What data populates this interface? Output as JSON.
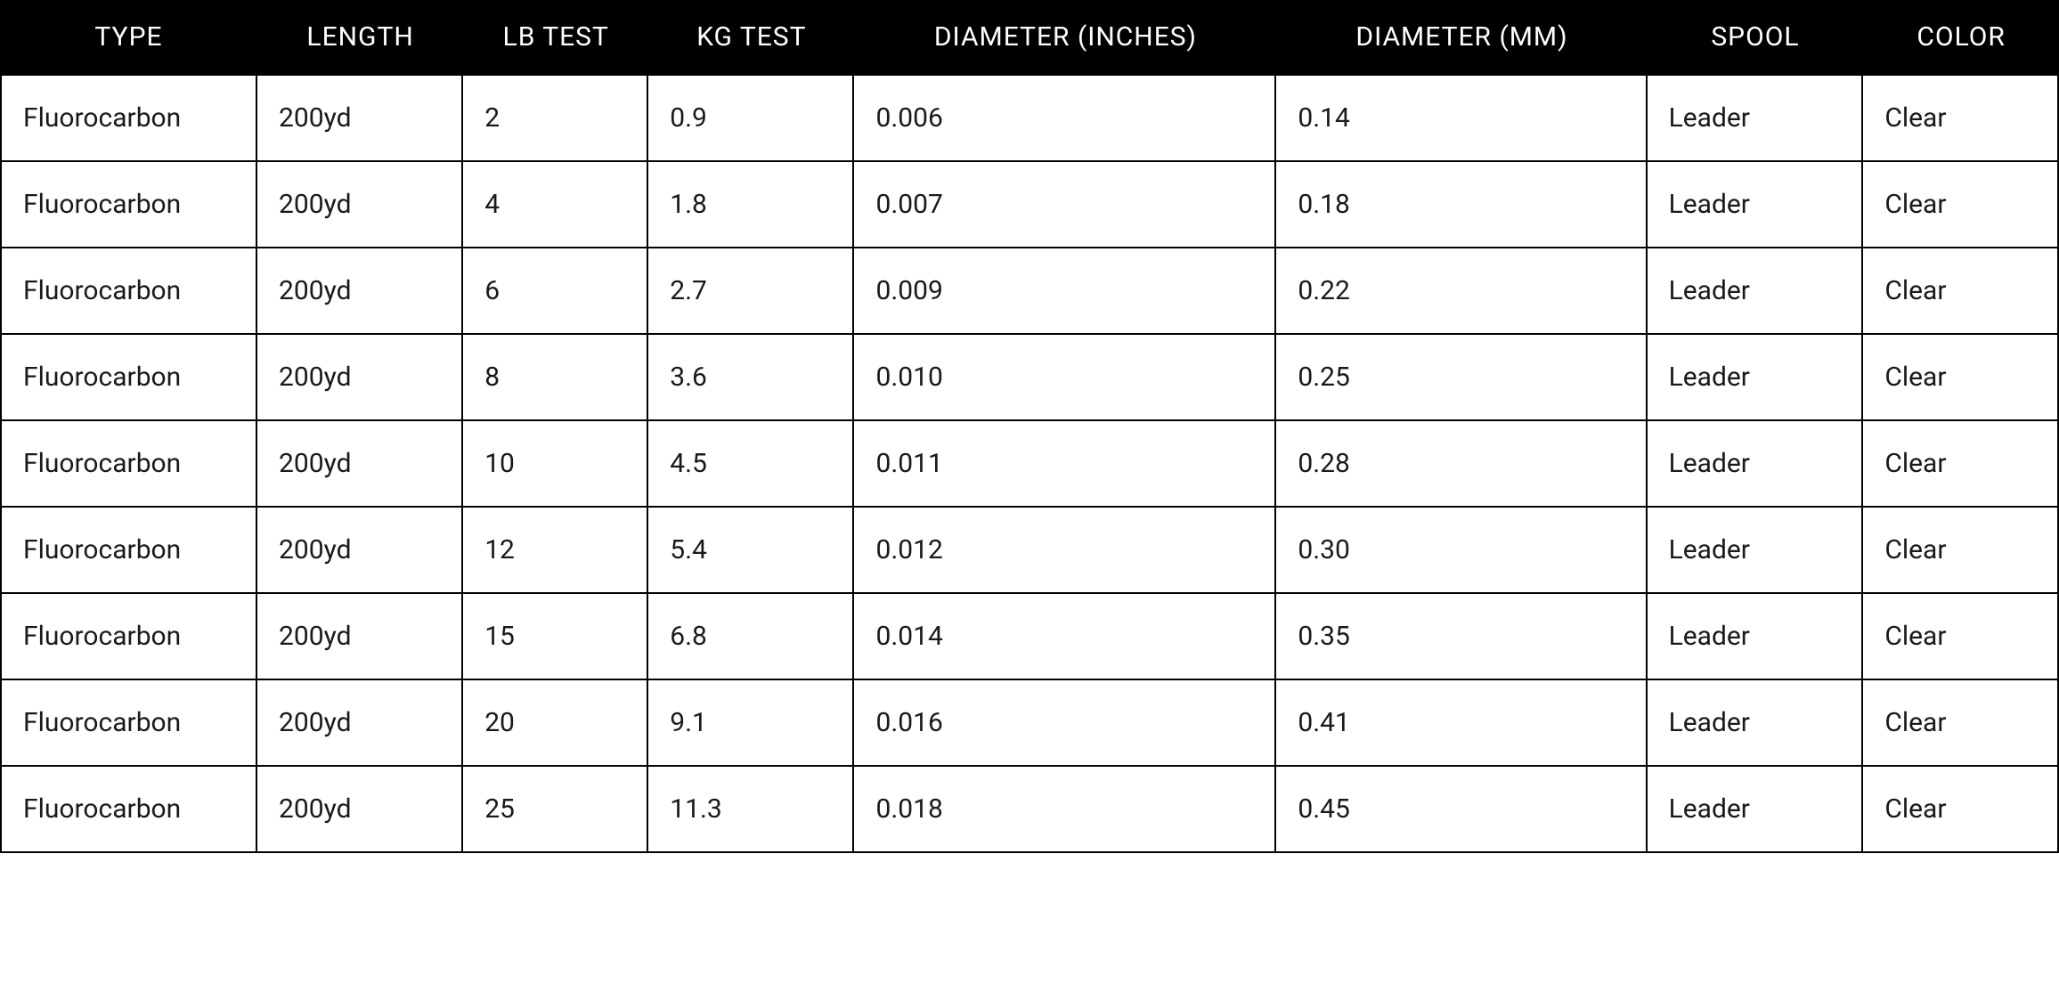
{
  "table": {
    "type": "table",
    "header_bg": "#000000",
    "header_text_color": "#ffffff",
    "cell_text_color": "#1a1a1a",
    "cell_bg": "#ffffff",
    "border_color": "#000000",
    "border_width": 2,
    "header_fontsize": 30,
    "cell_fontsize": 30,
    "font_family": "Roboto, Helvetica Neue, Arial, sans-serif",
    "columns": [
      {
        "key": "type",
        "label": "TYPE",
        "width_pct": 12.5,
        "align": "left",
        "header_align": "center"
      },
      {
        "key": "length",
        "label": "LENGTH",
        "width_pct": 10,
        "align": "left",
        "header_align": "center"
      },
      {
        "key": "lb_test",
        "label": "LB TEST",
        "width_pct": 9,
        "align": "left",
        "header_align": "center"
      },
      {
        "key": "kg_test",
        "label": "KG TEST",
        "width_pct": 10,
        "align": "left",
        "header_align": "center"
      },
      {
        "key": "dia_in",
        "label": "DIAMETER (INCHES)",
        "width_pct": 20.5,
        "align": "left",
        "header_align": "center"
      },
      {
        "key": "dia_mm",
        "label": "DIAMETER (MM)",
        "width_pct": 18,
        "align": "left",
        "header_align": "center"
      },
      {
        "key": "spool",
        "label": "SPOOL",
        "width_pct": 10.5,
        "align": "left",
        "header_align": "center"
      },
      {
        "key": "color",
        "label": "COLOR",
        "width_pct": 9.5,
        "align": "left",
        "header_align": "center"
      }
    ],
    "rows": [
      {
        "type": "Fluorocarbon",
        "length": "200yd",
        "lb_test": "2",
        "kg_test": "0.9",
        "dia_in": "0.006",
        "dia_mm": "0.14",
        "spool": "Leader",
        "color": "Clear"
      },
      {
        "type": "Fluorocarbon",
        "length": "200yd",
        "lb_test": "4",
        "kg_test": "1.8",
        "dia_in": "0.007",
        "dia_mm": "0.18",
        "spool": "Leader",
        "color": "Clear"
      },
      {
        "type": "Fluorocarbon",
        "length": "200yd",
        "lb_test": "6",
        "kg_test": "2.7",
        "dia_in": "0.009",
        "dia_mm": "0.22",
        "spool": "Leader",
        "color": "Clear"
      },
      {
        "type": "Fluorocarbon",
        "length": "200yd",
        "lb_test": "8",
        "kg_test": "3.6",
        "dia_in": "0.010",
        "dia_mm": "0.25",
        "spool": "Leader",
        "color": "Clear"
      },
      {
        "type": "Fluorocarbon",
        "length": "200yd",
        "lb_test": "10",
        "kg_test": "4.5",
        "dia_in": "0.011",
        "dia_mm": "0.28",
        "spool": "Leader",
        "color": "Clear"
      },
      {
        "type": "Fluorocarbon",
        "length": "200yd",
        "lb_test": "12",
        "kg_test": "5.4",
        "dia_in": "0.012",
        "dia_mm": "0.30",
        "spool": "Leader",
        "color": "Clear"
      },
      {
        "type": "Fluorocarbon",
        "length": "200yd",
        "lb_test": "15",
        "kg_test": "6.8",
        "dia_in": "0.014",
        "dia_mm": "0.35",
        "spool": "Leader",
        "color": "Clear"
      },
      {
        "type": "Fluorocarbon",
        "length": "200yd",
        "lb_test": "20",
        "kg_test": "9.1",
        "dia_in": "0.016",
        "dia_mm": "0.41",
        "spool": "Leader",
        "color": "Clear"
      },
      {
        "type": "Fluorocarbon",
        "length": "200yd",
        "lb_test": "25",
        "kg_test": "11.3",
        "dia_in": "0.018",
        "dia_mm": "0.45",
        "spool": "Leader",
        "color": "Clear"
      }
    ]
  }
}
